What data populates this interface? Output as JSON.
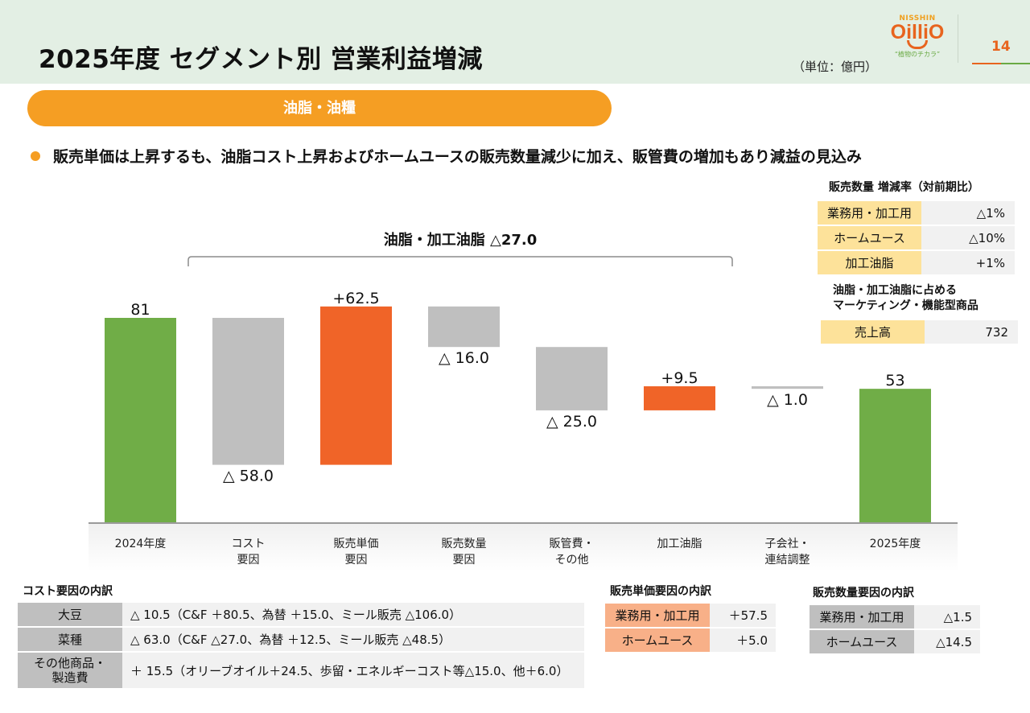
{
  "header": {
    "title": "2025年度 セグメント別 営業利益増減",
    "unit": "（単位：億円）",
    "logo": {
      "top": "NISSHIN",
      "brand": "OilliO",
      "tagline": "“植物のチカラ”"
    },
    "page_number": "14"
  },
  "segment_label": "油脂・油糧",
  "bullet": "販売単価は上昇するも、油脂コスト上昇およびホームユースの販売数量減少に加え、販管費の増加もあり減益の見込み",
  "volume_rate": {
    "title": "販売数量 増減率（対前期比）",
    "rows": [
      {
        "label": "業務用・加工用",
        "value": "△1%"
      },
      {
        "label": "ホームユース",
        "value": "△10%"
      },
      {
        "label": "加工油脂",
        "value": "+1%"
      }
    ]
  },
  "marketing": {
    "title_line1": "油脂・加工油脂に占める",
    "title_line2": "マーケティング・機能型商品",
    "rows": [
      {
        "label": "売上高",
        "value": "732"
      }
    ]
  },
  "colors": {
    "total": "#70ad47",
    "increase": "#f06428",
    "decrease": "#bfbfbf",
    "accent": "#f59e23",
    "brand": "#e8641e"
  },
  "chart_data": {
    "type": "bar",
    "subtype": "waterfall",
    "title": "",
    "bracket_label": "油脂・加工油脂 △27.0",
    "bracket_span": [
      "コスト要因",
      "販管費・その他"
    ],
    "categories": [
      "2024年度",
      "コスト要因",
      "販売単価要因",
      "販売数量要因",
      "販管費・その他",
      "加工油脂",
      "子会社・連結調整",
      "2025年度"
    ],
    "category_lines": [
      [
        "2024年度"
      ],
      [
        "コスト",
        "要因"
      ],
      [
        "販売単価",
        "要因"
      ],
      [
        "販売数量",
        "要因"
      ],
      [
        "販管費・",
        "その他"
      ],
      [
        "加工油脂"
      ],
      [
        "子会社・",
        "連結調整"
      ],
      [
        "2025年度"
      ]
    ],
    "values": [
      81,
      -58.0,
      62.5,
      -16.0,
      -25.0,
      9.5,
      -1.0,
      53
    ],
    "kinds": [
      "total",
      "decrease",
      "increase",
      "decrease",
      "decrease",
      "increase",
      "decrease",
      "total"
    ],
    "labels": [
      "81",
      "△ 58.0",
      "+62.5",
      "△ 16.0",
      "△ 25.0",
      "+9.5",
      "△ 1.0",
      "53"
    ],
    "xlabel": "",
    "ylabel": "",
    "ylim": [
      0,
      90
    ],
    "grid": false,
    "legend": "none"
  },
  "cost_breakdown": {
    "title": "コスト要因の内訳",
    "rows": [
      {
        "label": "大豆",
        "value": "△ 10.5（C&F ＋80.5、為替 ＋15.0、ミール販売 △106.0）"
      },
      {
        "label": "菜種",
        "value": "△ 63.0（C&F △27.0、為替 ＋12.5、ミール販売 △48.5）"
      },
      {
        "label_line1": "その他商品・",
        "label_line2": "製造費",
        "value": "＋ 15.5（オリーブオイル＋24.5、歩留・エネルギーコスト等△15.0、他＋6.0）"
      }
    ]
  },
  "price_breakdown": {
    "title": "販売単価要因の内訳",
    "rows": [
      {
        "label": "業務用・加工用",
        "value": "＋57.5"
      },
      {
        "label": "ホームユース",
        "value": "＋5.0"
      }
    ]
  },
  "volume_breakdown": {
    "title": "販売数量要因の内訳",
    "rows": [
      {
        "label": "業務用・加工用",
        "value": "△1.5"
      },
      {
        "label": "ホームユース",
        "value": "△14.5"
      }
    ]
  }
}
